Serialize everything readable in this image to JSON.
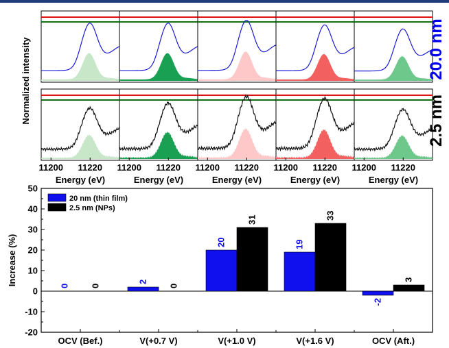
{
  "chart_data": [
    {
      "type": "area",
      "ylabel": "Normalized intensity",
      "xlabel": "Energy (eV)",
      "x_ticks": [
        11200,
        11220
      ],
      "xlim": [
        11195,
        11235
      ],
      "row_labels": [
        "20.0 nm",
        "2.5 nm"
      ],
      "row_label_colors": [
        "#0000ee",
        "#000000"
      ],
      "reference_lines": [
        {
          "color": "#e01010",
          "level": 1.0
        },
        {
          "color": "#107010",
          "level": 0.92
        }
      ],
      "row_line_colors": [
        "#1a1ad6",
        "#111111"
      ],
      "panel_fill_colors": [
        "#c8e6c8",
        "#1aa052",
        "#ffc8c8",
        "#f26060",
        "#6ec88c"
      ],
      "panel_peak_heights": [
        [
          0.88,
          0.88,
          0.93,
          0.85,
          0.78
        ],
        [
          0.76,
          0.85,
          0.96,
          0.93,
          0.74
        ]
      ],
      "panels_per_row": 5
    },
    {
      "type": "bar",
      "ylabel": "Increase (%)",
      "categories": [
        "OCV (Bef.)",
        "V(+0.7 V)",
        "V(+1.0 V)",
        "V(+1.6 V)",
        "OCV (Aft.)"
      ],
      "series": [
        {
          "name": "20 nm (thin film)",
          "color": "#1010ee",
          "values": [
            0,
            2,
            20,
            19,
            -2
          ]
        },
        {
          "name": "2.5 nm (NPs)",
          "color": "#000000",
          "values": [
            0,
            0,
            31,
            33,
            3
          ]
        }
      ],
      "value_labels": [
        [
          "0",
          "2",
          "20",
          "19",
          "-2"
        ],
        [
          "0",
          "0",
          "31",
          "33",
          "3"
        ]
      ],
      "ylim": [
        -20,
        50
      ],
      "yticks": [
        -20,
        -10,
        0,
        10,
        20,
        30,
        40,
        50
      ],
      "legend_position": "top-left"
    }
  ]
}
